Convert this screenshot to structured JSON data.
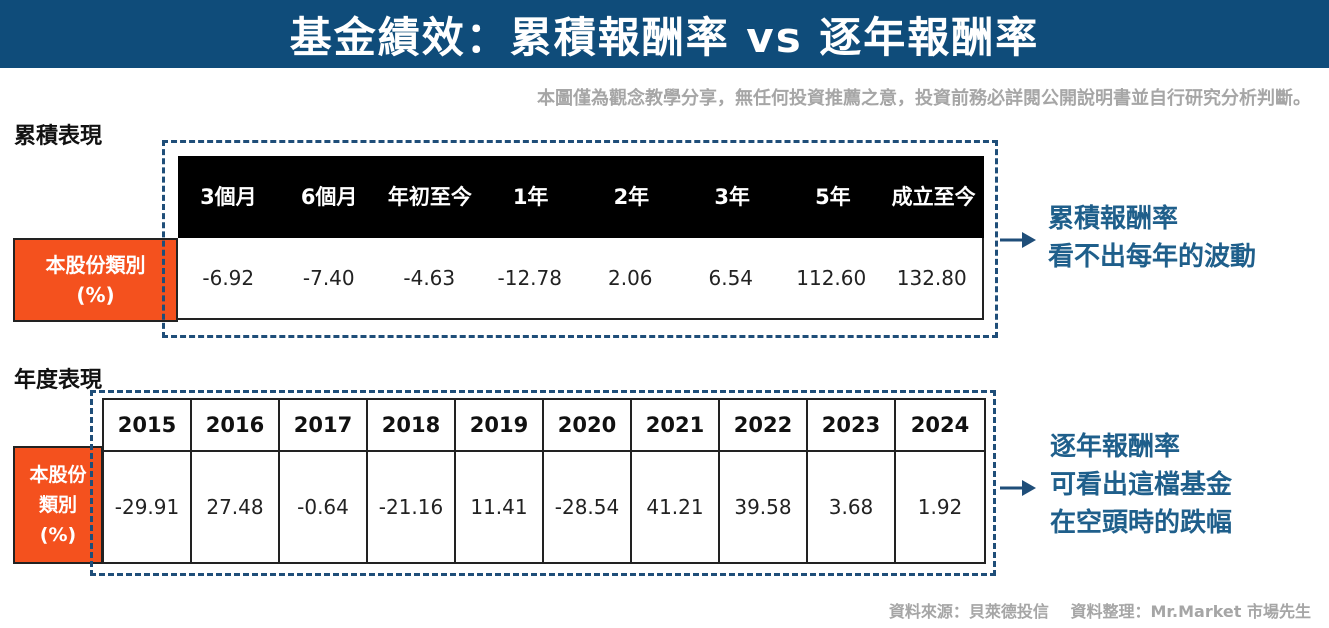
{
  "title": "基金績效：累積報酬率 vs 逐年報酬率",
  "disclaimer": "本圖僅為觀念教學分享，無任何投資推薦之意，投資前務必詳閱公開說明書並自行研究分析判斷。",
  "cumulative": {
    "section_label": "累積表現",
    "row_label_line1": "本股份類別",
    "row_label_line2": "(%)",
    "headers": [
      "3個月",
      "6個月",
      "年初至今",
      "1年",
      "2年",
      "3年",
      "5年",
      "成立至今"
    ],
    "values": [
      "-6.92",
      "-7.40",
      "-4.63",
      "-12.78",
      "2.06",
      "6.54",
      "112.60",
      "132.80"
    ],
    "callout": [
      "累積報酬率",
      "看不出每年的波動"
    ]
  },
  "annual": {
    "section_label": "年度表現",
    "row_label_lines": [
      "本股份",
      "類別",
      "(%)"
    ],
    "years": [
      "2015",
      "2016",
      "2017",
      "2018",
      "2019",
      "2020",
      "2021",
      "2022",
      "2023",
      "2024"
    ],
    "values": [
      "-29.91",
      "27.48",
      "-0.64",
      "-21.16",
      "11.41",
      "-28.54",
      "41.21",
      "39.58",
      "3.68",
      "1.92"
    ],
    "callout": [
      "逐年報酬率",
      "可看出這檔基金",
      "在空頭時的跌幅"
    ]
  },
  "source": "資料來源：貝萊德投信　 資料整理：Mr.Market 市場先生",
  "colors": {
    "banner": "#0f4c7a",
    "label_fill": "#f4511e",
    "dash": "#1f4e79",
    "callout_text": "#1f5f8b"
  }
}
